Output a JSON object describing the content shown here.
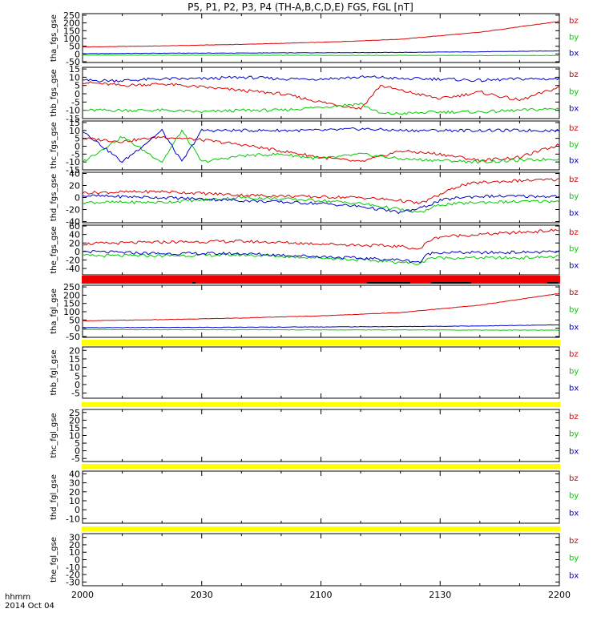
{
  "title": "P5, P1, P2, P3, P4 (TH-A,B,C,D,E) FGS, FGL [nT]",
  "time_label": "hhmm",
  "date_label": "2014 Oct 04",
  "x_ticks": [
    "2000",
    "2030",
    "2100",
    "2130",
    "2200"
  ],
  "colors": {
    "bz": "#dd0000",
    "by": "#00cc00",
    "bx": "#0000cc",
    "axis": "#000000",
    "flag_red": "#ee0000",
    "flag_yellow": "#ffff00"
  },
  "chart_data": [
    {
      "type": "line",
      "ylabel": "tha_fgs_gse",
      "ylim": [
        -55,
        260
      ],
      "yticks": [
        "-50",
        "0",
        "50",
        "100",
        "150",
        "200",
        "250"
      ],
      "ytick_values": [
        -50,
        0,
        50,
        100,
        150,
        200,
        250
      ],
      "x": [
        0,
        20,
        40,
        60,
        80,
        100,
        120
      ],
      "series": [
        {
          "name": "bz",
          "values": [
            45,
            52,
            62,
            75,
            95,
            140,
            210
          ]
        },
        {
          "name": "by",
          "values": [
            -7,
            -8,
            -8,
            -9,
            -9,
            -10,
            -10
          ]
        },
        {
          "name": "bx",
          "values": [
            2,
            5,
            6,
            8,
            10,
            14,
            20
          ]
        }
      ]
    },
    {
      "type": "line",
      "ylabel": "thb_fgs_gse",
      "ylim": [
        -15,
        16
      ],
      "yticks": [
        "-15",
        "-10",
        "-5",
        "0",
        "5",
        "10",
        "15"
      ],
      "ytick_values": [
        -15,
        -10,
        -5,
        0,
        5,
        10,
        15
      ],
      "x": [
        0,
        10,
        20,
        30,
        40,
        50,
        60,
        70,
        75,
        80,
        90,
        100,
        110,
        120
      ],
      "series": [
        {
          "name": "bz",
          "values": [
            7,
            5,
            6,
            4,
            2,
            0,
            -5,
            -9,
            5,
            2,
            -3,
            1,
            -4,
            4
          ]
        },
        {
          "name": "by",
          "values": [
            -10,
            -10,
            -10,
            -11,
            -10,
            -10,
            -8,
            -6,
            -12,
            -12,
            -11,
            -11,
            -10,
            -9
          ]
        },
        {
          "name": "bx",
          "values": [
            8,
            8,
            9,
            9,
            10,
            9,
            9,
            10,
            10,
            9,
            9,
            8,
            9,
            9
          ]
        }
      ]
    },
    {
      "type": "line",
      "ylabel": "thc_fgs_gse",
      "ylim": [
        -15,
        16
      ],
      "yticks": [
        "-15",
        "-10",
        "-5",
        "0",
        "5",
        "10",
        "15"
      ],
      "ytick_values": [
        -15,
        -10,
        -5,
        0,
        5,
        10,
        15
      ],
      "x": [
        0,
        10,
        20,
        25,
        30,
        40,
        50,
        60,
        70,
        80,
        90,
        100,
        110,
        120
      ],
      "series": [
        {
          "name": "bz",
          "values": [
            5,
            3,
            6,
            5,
            4,
            1,
            -3,
            -7,
            -10,
            -3,
            -5,
            -9,
            -7,
            1
          ]
        },
        {
          "name": "by",
          "values": [
            -10,
            6,
            -10,
            10,
            -10,
            -6,
            -5,
            -8,
            -5,
            -8,
            -9,
            -10,
            -9,
            -8
          ]
        },
        {
          "name": "bx",
          "values": [
            10,
            -10,
            10,
            -10,
            10,
            10,
            10,
            10,
            11,
            10,
            10,
            10,
            10,
            10
          ]
        }
      ]
    },
    {
      "type": "line",
      "ylabel": "thd_fgs_gse",
      "ylim": [
        -42,
        42
      ],
      "yticks": [
        "-40",
        "-20",
        "0",
        "20",
        "40"
      ],
      "ytick_values": [
        -40,
        -20,
        0,
        20,
        40
      ],
      "x": [
        0,
        20,
        40,
        60,
        70,
        80,
        85,
        90,
        95,
        100,
        110,
        120
      ],
      "series": [
        {
          "name": "bz",
          "values": [
            8,
            10,
            4,
            1,
            0,
            -5,
            -10,
            5,
            20,
            25,
            28,
            30
          ]
        },
        {
          "name": "by",
          "values": [
            -8,
            -8,
            0,
            -5,
            -10,
            -20,
            -25,
            -12,
            -10,
            -8,
            -7,
            -6
          ]
        },
        {
          "name": "bx",
          "values": [
            3,
            0,
            -5,
            -10,
            -15,
            -25,
            -18,
            -5,
            0,
            2,
            2,
            2
          ]
        }
      ]
    },
    {
      "type": "line",
      "ylabel": "the_fgs_gse",
      "ylim": [
        -55,
        62
      ],
      "yticks": [
        "-40",
        "-20",
        "0",
        "20",
        "40",
        "60"
      ],
      "ytick_values": [
        -40,
        -20,
        0,
        20,
        40,
        60
      ],
      "x": [
        0,
        20,
        40,
        60,
        80,
        85,
        87,
        90,
        100,
        110,
        120
      ],
      "series": [
        {
          "name": "bz",
          "values": [
            18,
            22,
            24,
            18,
            12,
            5,
            25,
            35,
            40,
            45,
            50
          ]
        },
        {
          "name": "by",
          "values": [
            -10,
            -10,
            -8,
            -15,
            -25,
            -30,
            -15,
            -15,
            -15,
            -15,
            -12
          ]
        },
        {
          "name": "bx",
          "values": [
            0,
            -5,
            -5,
            -12,
            -20,
            -25,
            -5,
            -2,
            -3,
            -2,
            -1
          ]
        }
      ]
    },
    {
      "type": "line",
      "ylabel": "tha_fgl_gse",
      "ylim": [
        -55,
        260
      ],
      "yticks": [
        "-50",
        "0",
        "50",
        "100",
        "150",
        "200",
        "250"
      ],
      "ytick_values": [
        -50,
        0,
        50,
        100,
        150,
        200,
        250
      ],
      "x": [
        0,
        20,
        40,
        60,
        80,
        100,
        120
      ],
      "series": [
        {
          "name": "bz",
          "values": [
            45,
            52,
            62,
            75,
            95,
            140,
            210
          ]
        },
        {
          "name": "by",
          "values": [
            -8,
            -9,
            -9,
            -10,
            -10,
            -11,
            -12
          ]
        },
        {
          "name": "bx",
          "values": [
            3,
            5,
            6,
            8,
            10,
            14,
            20
          ]
        }
      ]
    },
    {
      "type": "line",
      "ylabel": "thb_fgl_gse",
      "ylim": [
        -8,
        22
      ],
      "yticks": [
        "-5",
        "0",
        "5",
        "10",
        "15",
        "20"
      ],
      "ytick_values": [
        -5,
        0,
        5,
        10,
        15,
        20
      ],
      "x": [],
      "series": []
    },
    {
      "type": "line",
      "ylabel": "thc_fgl_gse",
      "ylim": [
        -7,
        27
      ],
      "yticks": [
        "-5",
        "0",
        "5",
        "10",
        "15",
        "20",
        "25"
      ],
      "ytick_values": [
        -5,
        0,
        5,
        10,
        15,
        20,
        25
      ],
      "x": [],
      "series": []
    },
    {
      "type": "line",
      "ylabel": "thd_fgl_gse",
      "ylim": [
        -15,
        43
      ],
      "yticks": [
        "-10",
        "0",
        "10",
        "20",
        "30",
        "40"
      ],
      "ytick_values": [
        -10,
        0,
        10,
        20,
        30,
        40
      ],
      "x": [],
      "series": []
    },
    {
      "type": "line",
      "ylabel": "the_fgl_gse",
      "ylim": [
        -35,
        35
      ],
      "yticks": [
        "-30",
        "-20",
        "-10",
        "0",
        "10",
        "20",
        "30"
      ],
      "ytick_values": [
        -30,
        -20,
        -10,
        0,
        10,
        20,
        30
      ],
      "x": [],
      "series": []
    }
  ]
}
